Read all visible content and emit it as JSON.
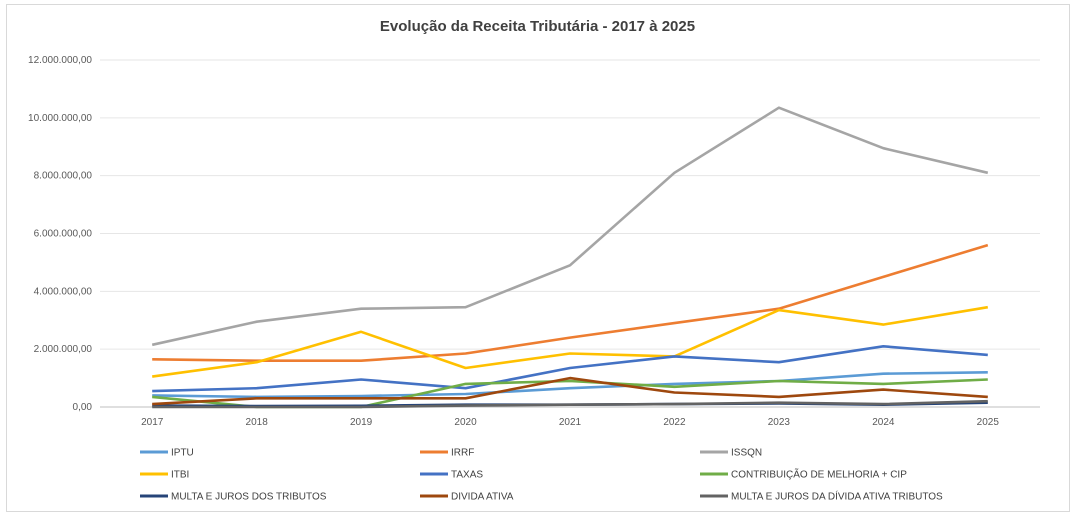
{
  "chart_data": {
    "type": "line",
    "title": "Evolução da Receita Tributária - 2017 à 2025",
    "xlabel": "",
    "ylabel": "",
    "categories": [
      "2017",
      "2018",
      "2019",
      "2020",
      "2021",
      "2022",
      "2023",
      "2024",
      "2025"
    ],
    "ylim": [
      0,
      12000000
    ],
    "y_ticks": [
      "0,00",
      "2.000.000,00",
      "4.000.000,00",
      "6.000.000,00",
      "8.000.000,00",
      "10.000.000,00",
      "12.000.000,00"
    ],
    "grid": true,
    "legend_position": "bottom",
    "series": [
      {
        "name": "IPTU",
        "color": "#5b9bd5",
        "values": [
          400000,
          350000,
          380000,
          450000,
          650000,
          800000,
          900000,
          1150000,
          1200000
        ]
      },
      {
        "name": "IRRF",
        "color": "#ed7d31",
        "values": [
          1650000,
          1600000,
          1600000,
          1850000,
          2400000,
          2900000,
          3400000,
          4500000,
          5600000
        ]
      },
      {
        "name": "ISSQN",
        "color": "#a5a5a5",
        "values": [
          2150000,
          2950000,
          3400000,
          3450000,
          4900000,
          8100000,
          10350000,
          8950000,
          8100000
        ]
      },
      {
        "name": "ITBI",
        "color": "#ffc000",
        "values": [
          1050000,
          1550000,
          2600000,
          1350000,
          1850000,
          1750000,
          3350000,
          2850000,
          3450000
        ]
      },
      {
        "name": "TAXAS",
        "color": "#4472c4",
        "values": [
          550000,
          650000,
          950000,
          650000,
          1350000,
          1750000,
          1550000,
          2100000,
          1800000
        ]
      },
      {
        "name": "CONTRIBUIÇÃO DE MELHORIA + CIP",
        "color": "#70ad47",
        "values": [
          350000,
          0,
          0,
          800000,
          900000,
          700000,
          900000,
          800000,
          950000
        ]
      },
      {
        "name": "MULTA E JUROS DOS TRIBUTOS",
        "color": "#264478",
        "values": [
          50000,
          30000,
          40000,
          80000,
          80000,
          100000,
          120000,
          80000,
          150000
        ]
      },
      {
        "name": "DIVIDA ATIVA",
        "color": "#9e480e",
        "values": [
          100000,
          300000,
          300000,
          300000,
          1000000,
          500000,
          350000,
          600000,
          350000
        ]
      },
      {
        "name": "MULTA E JUROS DA DÍVIDA ATIVA TRIBUTOS",
        "color": "#636363",
        "values": [
          0,
          0,
          0,
          50000,
          80000,
          100000,
          150000,
          100000,
          200000
        ]
      }
    ]
  }
}
